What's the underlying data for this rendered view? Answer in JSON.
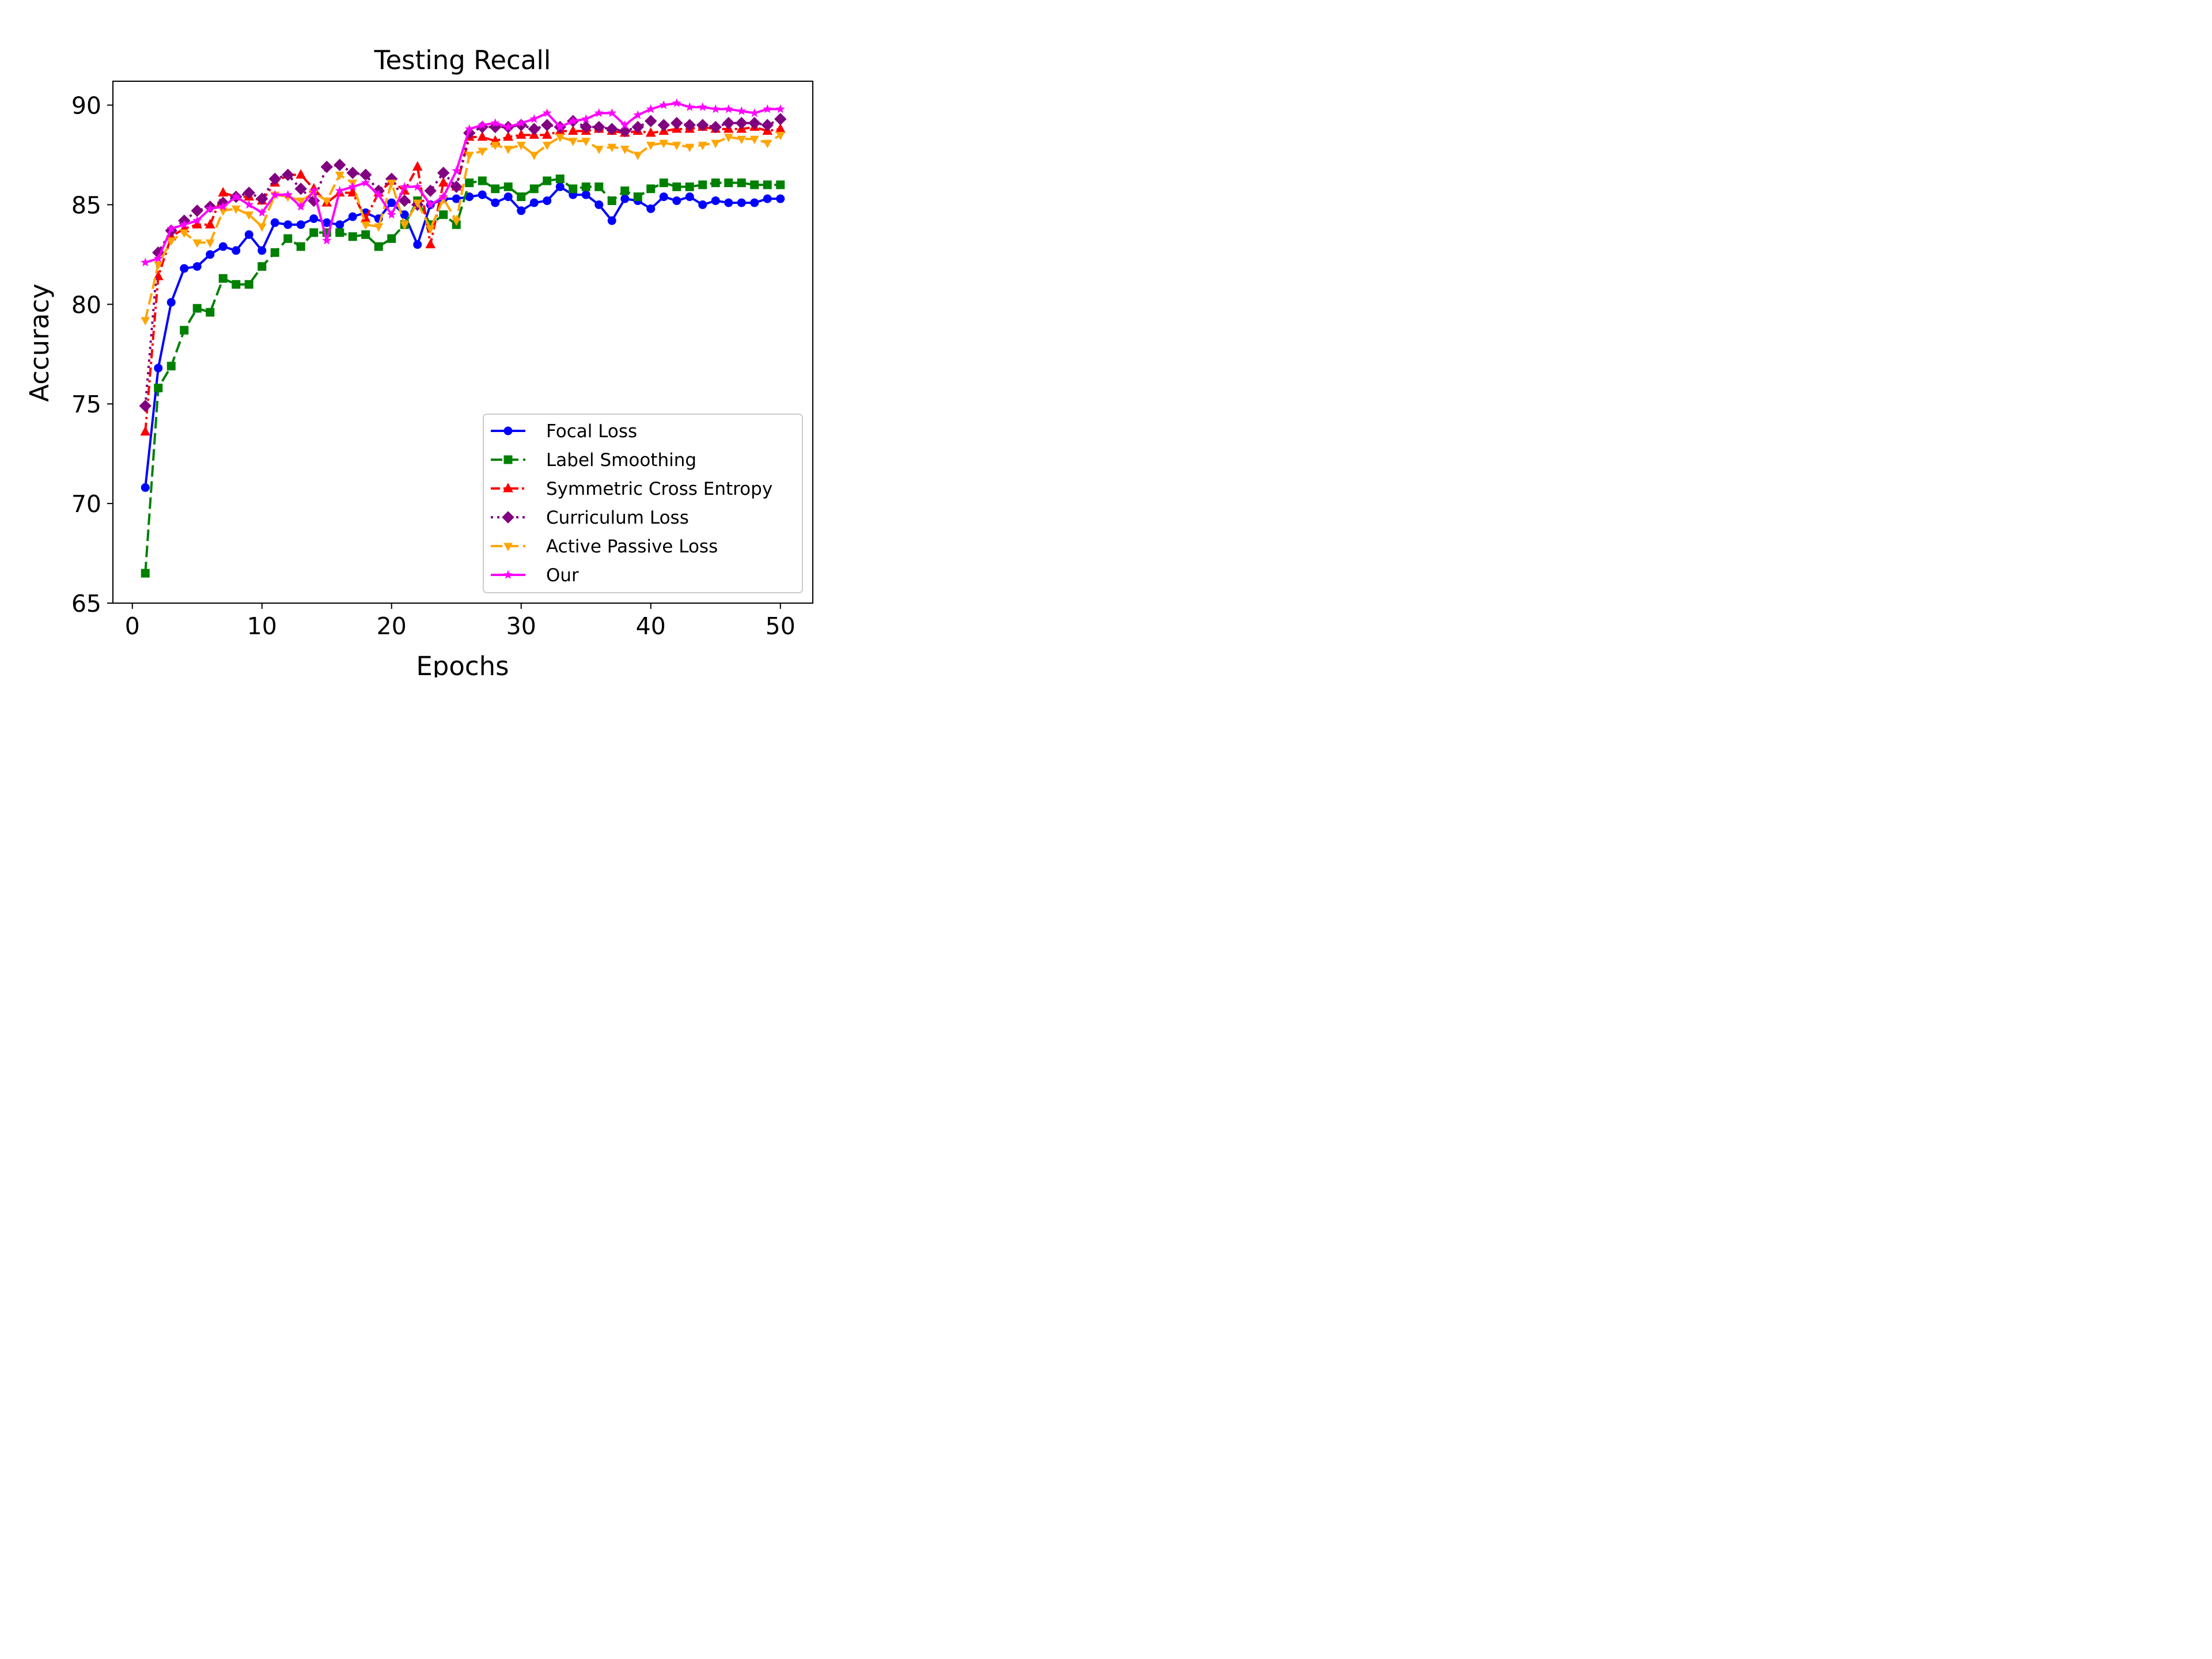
{
  "chart_data": {
    "type": "line",
    "title": "Testing Recall",
    "xlabel": "Epochs",
    "ylabel": "Accuracy",
    "xlim": [
      -1.5,
      52.5
    ],
    "ylim": [
      65,
      91.2
    ],
    "xticks": [
      0,
      10,
      20,
      30,
      40,
      50
    ],
    "yticks": [
      65,
      70,
      75,
      80,
      85,
      90
    ],
    "grid": false,
    "legend_position": "lower-right",
    "x": [
      1,
      2,
      3,
      4,
      5,
      6,
      7,
      8,
      9,
      10,
      11,
      12,
      13,
      14,
      15,
      16,
      17,
      18,
      19,
      20,
      21,
      22,
      23,
      24,
      25,
      26,
      27,
      28,
      29,
      30,
      31,
      32,
      33,
      34,
      35,
      36,
      37,
      38,
      39,
      40,
      41,
      42,
      43,
      44,
      45,
      46,
      47,
      48,
      49,
      50
    ],
    "series": [
      {
        "name": "Focal Loss",
        "color": "#0000ff",
        "marker": "circle",
        "dash": "solid",
        "values": [
          70.8,
          76.8,
          80.1,
          81.8,
          81.9,
          82.5,
          82.9,
          82.7,
          83.5,
          82.7,
          84.1,
          84.0,
          84.0,
          84.3,
          84.1,
          84.0,
          84.4,
          84.6,
          84.3,
          85.1,
          84.5,
          83.0,
          85.0,
          85.3,
          85.3,
          85.4,
          85.5,
          85.1,
          85.4,
          84.7,
          85.1,
          85.2,
          85.9,
          85.5,
          85.5,
          85.0,
          84.2,
          85.3,
          85.2,
          84.8,
          85.4,
          85.2,
          85.4,
          85.0,
          85.2,
          85.1,
          85.1,
          85.1,
          85.3,
          85.3
        ]
      },
      {
        "name": "Label Smoothing",
        "color": "#008000",
        "marker": "square",
        "dash": "dashed",
        "values": [
          66.5,
          75.8,
          76.9,
          78.7,
          79.8,
          79.6,
          81.3,
          81.0,
          81.0,
          81.9,
          82.6,
          83.3,
          82.9,
          83.6,
          83.6,
          83.6,
          83.4,
          83.5,
          82.9,
          83.3,
          84.0,
          85.2,
          84.0,
          84.5,
          84.0,
          86.1,
          86.2,
          85.8,
          85.9,
          85.4,
          85.8,
          86.2,
          86.3,
          85.8,
          85.9,
          85.9,
          85.2,
          85.7,
          85.4,
          85.8,
          86.1,
          85.9,
          85.9,
          86.0,
          86.1,
          86.1,
          86.1,
          86.0,
          86.0,
          86.0
        ]
      },
      {
        "name": "Symmetric Cross Entropy",
        "color": "#ff0000",
        "marker": "triangle",
        "dash": "dashdot",
        "values": [
          73.6,
          81.4,
          83.4,
          83.8,
          84.0,
          84.0,
          85.6,
          85.4,
          85.4,
          85.2,
          86.1,
          86.5,
          86.5,
          85.8,
          85.1,
          85.6,
          85.6,
          84.3,
          85.6,
          86.2,
          85.7,
          86.9,
          83.0,
          86.1,
          85.9,
          88.4,
          88.4,
          88.2,
          88.4,
          88.5,
          88.5,
          88.5,
          88.7,
          88.7,
          88.7,
          88.8,
          88.7,
          88.6,
          88.7,
          88.6,
          88.7,
          88.8,
          88.8,
          88.9,
          88.8,
          88.8,
          88.8,
          88.9,
          88.7,
          88.8
        ]
      },
      {
        "name": "Curriculum Loss",
        "color": "#800080",
        "marker": "diamond",
        "dash": "dotted",
        "values": [
          74.9,
          82.6,
          83.7,
          84.2,
          84.7,
          84.9,
          85.1,
          85.4,
          85.6,
          85.3,
          86.3,
          86.5,
          85.8,
          85.2,
          86.9,
          87.0,
          86.6,
          86.5,
          85.7,
          86.3,
          85.2,
          85.0,
          85.7,
          86.6,
          85.9,
          88.6,
          88.9,
          88.9,
          88.9,
          89.0,
          88.8,
          89.0,
          88.9,
          89.2,
          88.9,
          88.9,
          88.8,
          88.7,
          88.9,
          89.2,
          89.0,
          89.1,
          89.0,
          89.0,
          88.9,
          89.1,
          89.1,
          89.1,
          89.0,
          89.3
        ]
      },
      {
        "name": "Active Passive Loss",
        "color": "#ffa500",
        "marker": "triangle-down",
        "dash": "dashed",
        "values": [
          79.2,
          82.0,
          83.2,
          83.6,
          83.1,
          83.1,
          84.7,
          84.8,
          84.5,
          83.9,
          85.5,
          85.4,
          85.2,
          85.6,
          85.2,
          86.5,
          86.1,
          84.0,
          83.9,
          86.1,
          84.0,
          85.1,
          83.8,
          85.3,
          84.2,
          87.5,
          87.7,
          88.0,
          87.8,
          88.0,
          87.5,
          88.0,
          88.4,
          88.2,
          88.2,
          87.8,
          87.9,
          87.8,
          87.5,
          88.0,
          88.1,
          88.0,
          87.9,
          88.0,
          88.1,
          88.4,
          88.3,
          88.3,
          88.1,
          88.5
        ]
      },
      {
        "name": "Our",
        "color": "#ff00ff",
        "marker": "star",
        "dash": "solid",
        "values": [
          82.1,
          82.3,
          83.8,
          84.0,
          84.2,
          84.8,
          84.9,
          85.4,
          85.0,
          84.6,
          85.5,
          85.5,
          84.9,
          85.7,
          83.2,
          85.7,
          85.9,
          86.1,
          85.5,
          84.5,
          85.9,
          85.9,
          85.0,
          85.4,
          86.7,
          88.8,
          89.0,
          89.1,
          88.9,
          89.1,
          89.3,
          89.6,
          88.9,
          89.2,
          89.3,
          89.6,
          89.6,
          89.0,
          89.5,
          89.8,
          90.0,
          90.1,
          89.9,
          89.9,
          89.8,
          89.8,
          89.7,
          89.6,
          89.8,
          89.8
        ]
      }
    ]
  }
}
